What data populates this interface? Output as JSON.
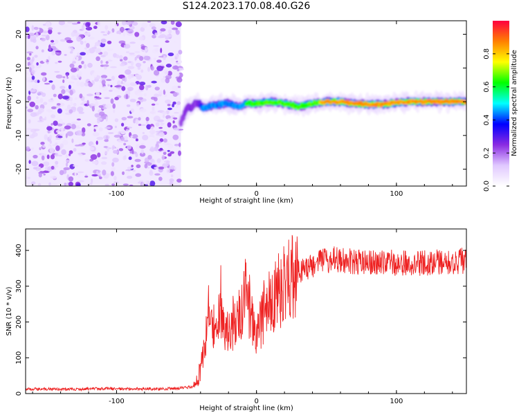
{
  "title": "S124.2023.170.08.40.G26",
  "chart_data": [
    {
      "type": "heatmap",
      "xlabel": "Height of straight line (km)",
      "ylabel": "Frequency (Hz)",
      "xlim": [
        -165,
        150
      ],
      "ylim": [
        -25,
        24
      ],
      "xticks": [
        -100,
        0,
        100
      ],
      "yticks": [
        -20,
        -10,
        0,
        10,
        20
      ],
      "colorbar": {
        "label": "Normalized spectral amplitude",
        "range": [
          0,
          1
        ],
        "ticks": [
          "0.0",
          "0.2",
          "0.4",
          "0.6",
          "0.8"
        ],
        "colormap": [
          "#ffffff",
          "#e0c8ff",
          "#8a2be2",
          "#0000ff",
          "#00ffff",
          "#00ff00",
          "#ffff00",
          "#ff8000",
          "#ff0040"
        ]
      },
      "noise_region": [
        -165,
        -54
      ],
      "signal_trace": [
        {
          "x": -54,
          "y": -6,
          "amp": 0.35
        },
        {
          "x": -50,
          "y": -2,
          "amp": 0.4
        },
        {
          "x": -46,
          "y": -1.5,
          "amp": 0.35
        },
        {
          "x": -42,
          "y": 0,
          "amp": 0.35
        },
        {
          "x": -38,
          "y": -2,
          "amp": 0.45
        },
        {
          "x": -34,
          "y": -1.5,
          "amp": 0.45
        },
        {
          "x": -30,
          "y": -1,
          "amp": 0.5
        },
        {
          "x": -26,
          "y": -0.8,
          "amp": 0.55
        },
        {
          "x": -20,
          "y": -0.5,
          "amp": 0.55
        },
        {
          "x": -14,
          "y": -1.5,
          "amp": 0.55
        },
        {
          "x": -8,
          "y": -0.5,
          "amp": 0.6
        },
        {
          "x": 0,
          "y": -0.5,
          "amp": 0.65
        },
        {
          "x": 10,
          "y": 0,
          "amp": 0.7
        },
        {
          "x": 20,
          "y": -0.5,
          "amp": 0.7
        },
        {
          "x": 30,
          "y": -1.5,
          "amp": 0.75
        },
        {
          "x": 40,
          "y": -0.5,
          "amp": 0.75
        },
        {
          "x": 50,
          "y": 0,
          "amp": 0.85
        },
        {
          "x": 60,
          "y": 0,
          "amp": 0.9
        },
        {
          "x": 70,
          "y": -0.5,
          "amp": 0.85
        },
        {
          "x": 80,
          "y": -0.8,
          "amp": 0.9
        },
        {
          "x": 90,
          "y": -0.8,
          "amp": 0.9
        },
        {
          "x": 100,
          "y": -0.3,
          "amp": 0.9
        },
        {
          "x": 110,
          "y": 0,
          "amp": 0.95
        },
        {
          "x": 120,
          "y": 0,
          "amp": 0.95
        },
        {
          "x": 130,
          "y": 0,
          "amp": 0.95
        },
        {
          "x": 140,
          "y": 0,
          "amp": 0.95
        },
        {
          "x": 150,
          "y": 0,
          "amp": 0.95
        }
      ]
    },
    {
      "type": "line",
      "xlabel": "Height of straight line (km)",
      "ylabel": "SNR (10 * v/v)",
      "xlim": [
        -165,
        150
      ],
      "ylim": [
        0,
        460
      ],
      "xticks": [
        -100,
        0,
        100
      ],
      "yticks": [
        0,
        100,
        200,
        300,
        400
      ],
      "line_color": "#ee2222",
      "series": [
        {
          "x": [
            -165,
            -150,
            -130,
            -110,
            -90,
            -70,
            -55,
            -45,
            -42,
            -40,
            -38,
            -36,
            -34,
            -32,
            -30,
            -28,
            -26,
            -24,
            -22,
            -20,
            -18,
            -16,
            -14,
            -12,
            -10,
            -8,
            -6,
            -4,
            -2,
            0,
            2,
            4,
            6,
            8,
            10,
            14,
            18,
            22,
            26,
            30,
            35,
            40,
            45,
            50,
            55,
            60,
            65,
            70,
            75,
            80,
            90,
            100,
            110,
            120,
            130,
            140,
            150
          ],
          "y": [
            12,
            13,
            12,
            14,
            13,
            13,
            15,
            20,
            40,
            70,
            110,
            170,
            250,
            210,
            180,
            130,
            280,
            200,
            150,
            180,
            170,
            220,
            200,
            215,
            230,
            280,
            260,
            230,
            175,
            140,
            190,
            210,
            240,
            250,
            265,
            280,
            300,
            315,
            330,
            340,
            348,
            358,
            365,
            372,
            375,
            376,
            372,
            370,
            368,
            366,
            368,
            365,
            366,
            364,
            368,
            370,
            372
          ]
        }
      ]
    }
  ]
}
